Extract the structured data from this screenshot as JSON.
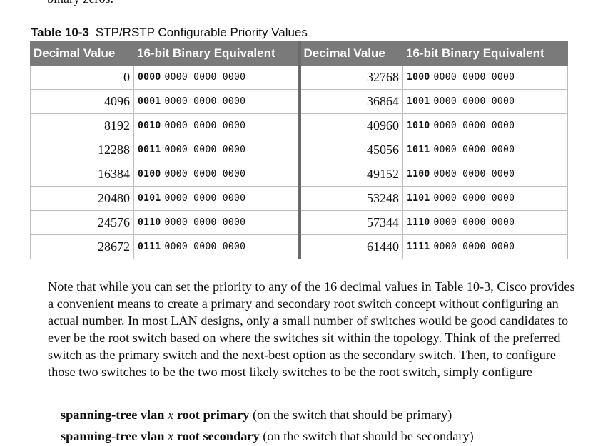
{
  "top_fragment": "binary zeros.",
  "table": {
    "caption_number": "Table 10-3",
    "caption_title": "STP/RSTP Configurable Priority Values",
    "headers": [
      "Decimal Value",
      "16-bit Binary Equivalent",
      "Decimal Value",
      "16-bit Binary Equivalent"
    ],
    "rows": [
      {
        "dec_left": "0",
        "bin_left_lead": "0000",
        "bin_left_rest": "0000 0000 0000",
        "dec_right": "32768",
        "bin_right_lead": "1000",
        "bin_right_rest": "0000 0000 0000"
      },
      {
        "dec_left": "4096",
        "bin_left_lead": "0001",
        "bin_left_rest": "0000 0000 0000",
        "dec_right": "36864",
        "bin_right_lead": "1001",
        "bin_right_rest": "0000 0000 0000"
      },
      {
        "dec_left": "8192",
        "bin_left_lead": "0010",
        "bin_left_rest": "0000 0000 0000",
        "dec_right": "40960",
        "bin_right_lead": "1010",
        "bin_right_rest": "0000 0000 0000"
      },
      {
        "dec_left": "12288",
        "bin_left_lead": "0011",
        "bin_left_rest": "0000 0000 0000",
        "dec_right": "45056",
        "bin_right_lead": "1011",
        "bin_right_rest": "0000 0000 0000"
      },
      {
        "dec_left": "16384",
        "bin_left_lead": "0100",
        "bin_left_rest": "0000 0000 0000",
        "dec_right": "49152",
        "bin_right_lead": "1100",
        "bin_right_rest": "0000 0000 0000"
      },
      {
        "dec_left": "20480",
        "bin_left_lead": "0101",
        "bin_left_rest": "0000 0000 0000",
        "dec_right": "53248",
        "bin_right_lead": "1101",
        "bin_right_rest": "0000 0000 0000"
      },
      {
        "dec_left": "24576",
        "bin_left_lead": "0110",
        "bin_left_rest": "0000 0000 0000",
        "dec_right": "57344",
        "bin_right_lead": "1110",
        "bin_right_rest": "0000 0000 0000"
      },
      {
        "dec_left": "28672",
        "bin_left_lead": "0111",
        "bin_left_rest": "0000 0000 0000",
        "dec_right": "61440",
        "bin_right_lead": "1111",
        "bin_right_rest": "0000 0000 0000"
      }
    ]
  },
  "paragraph": "Note that while you can set the priority to any of the 16 decimal values in Table 10-3, Cisco provides a convenient means to create a primary and secondary root switch concept without configuring an actual number. In most LAN designs, only a small number of switches would be good candidates to ever be the root switch based on where the switches sit within the topology. Think of the preferred switch as the primary switch and the next-best option as the secondary switch. Then, to configure those two switches to be the two most likely switches to be the root switch, simply configure",
  "commands": [
    {
      "cmd_start": "spanning-tree vlan",
      "variable": "x",
      "cmd_end": "root primary",
      "note": "(on the switch that should be primary)"
    },
    {
      "cmd_start": "spanning-tree vlan",
      "variable": "x",
      "cmd_end": "root secondary",
      "note": "(on the switch that should be secondary)"
    }
  ],
  "colors": {
    "header_bg": "#7a7a7a",
    "header_text": "#ffffff",
    "grid_line": "#bdbdbd",
    "divider": "#6a6a6a"
  }
}
